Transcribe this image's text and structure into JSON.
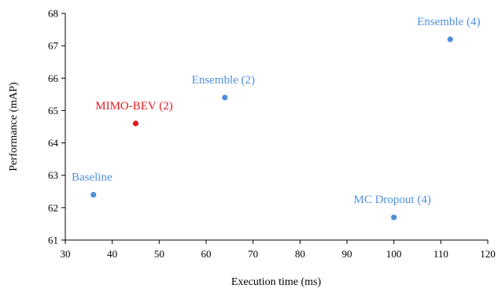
{
  "chart_data": {
    "type": "scatter",
    "title": "",
    "xlabel": "Execution time (ms)",
    "ylabel": "Performance (mAP)",
    "xlim": [
      30,
      120
    ],
    "ylim": [
      61,
      68
    ],
    "x_ticks": [
      "30",
      "40",
      "50",
      "60",
      "70",
      "80",
      "90",
      "100",
      "110",
      "120"
    ],
    "y_ticks": [
      "61",
      "62",
      "63",
      "64",
      "65",
      "66",
      "67",
      "68"
    ],
    "grid": false,
    "points": [
      {
        "label": "Baseline",
        "x": 36,
        "y": 62.4,
        "color": "#4f8fdd"
      },
      {
        "label": "MIMO-BEV (2)",
        "x": 45,
        "y": 64.6,
        "color": "#e31a1c"
      },
      {
        "label": "Ensemble (2)",
        "x": 64,
        "y": 65.4,
        "color": "#4f8fdd"
      },
      {
        "label": "MC Dropout (4)",
        "x": 100,
        "y": 61.7,
        "color": "#4f8fdd"
      },
      {
        "label": "Ensemble (4)",
        "x": 112,
        "y": 67.2,
        "color": "#4f8fdd"
      }
    ]
  }
}
